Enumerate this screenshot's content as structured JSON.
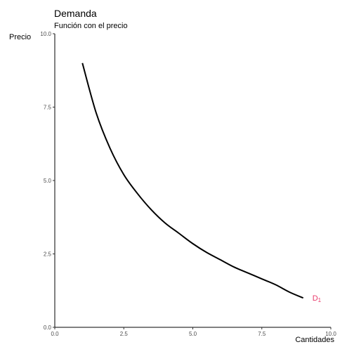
{
  "chart_data": {
    "type": "line",
    "title": "Demanda",
    "subtitle": "Función con el precio",
    "xlabel": "Cantidades",
    "ylabel": "Precio",
    "xlim": [
      0,
      10
    ],
    "ylim": [
      0,
      10
    ],
    "x_ticks": [
      "0.0",
      "2.5",
      "5.0",
      "7.5",
      "10.0"
    ],
    "y_ticks": [
      "0.0",
      "2.5",
      "5.0",
      "7.5",
      "10.0"
    ],
    "grid": false,
    "series": [
      {
        "name": "D1",
        "label_main": "D",
        "label_sub": "1",
        "color": "#e8396a",
        "line_color": "#000000",
        "x": [
          1,
          1.5,
          2,
          2.5,
          3,
          3.5,
          4,
          4.5,
          5,
          5.5,
          6,
          6.5,
          7,
          7.5,
          8,
          8.5,
          9
        ],
        "y": [
          9.0,
          7.3,
          6.1,
          5.2,
          4.55,
          4.0,
          3.55,
          3.2,
          2.85,
          2.55,
          2.3,
          2.05,
          1.85,
          1.65,
          1.45,
          1.2,
          1.0
        ]
      }
    ]
  }
}
